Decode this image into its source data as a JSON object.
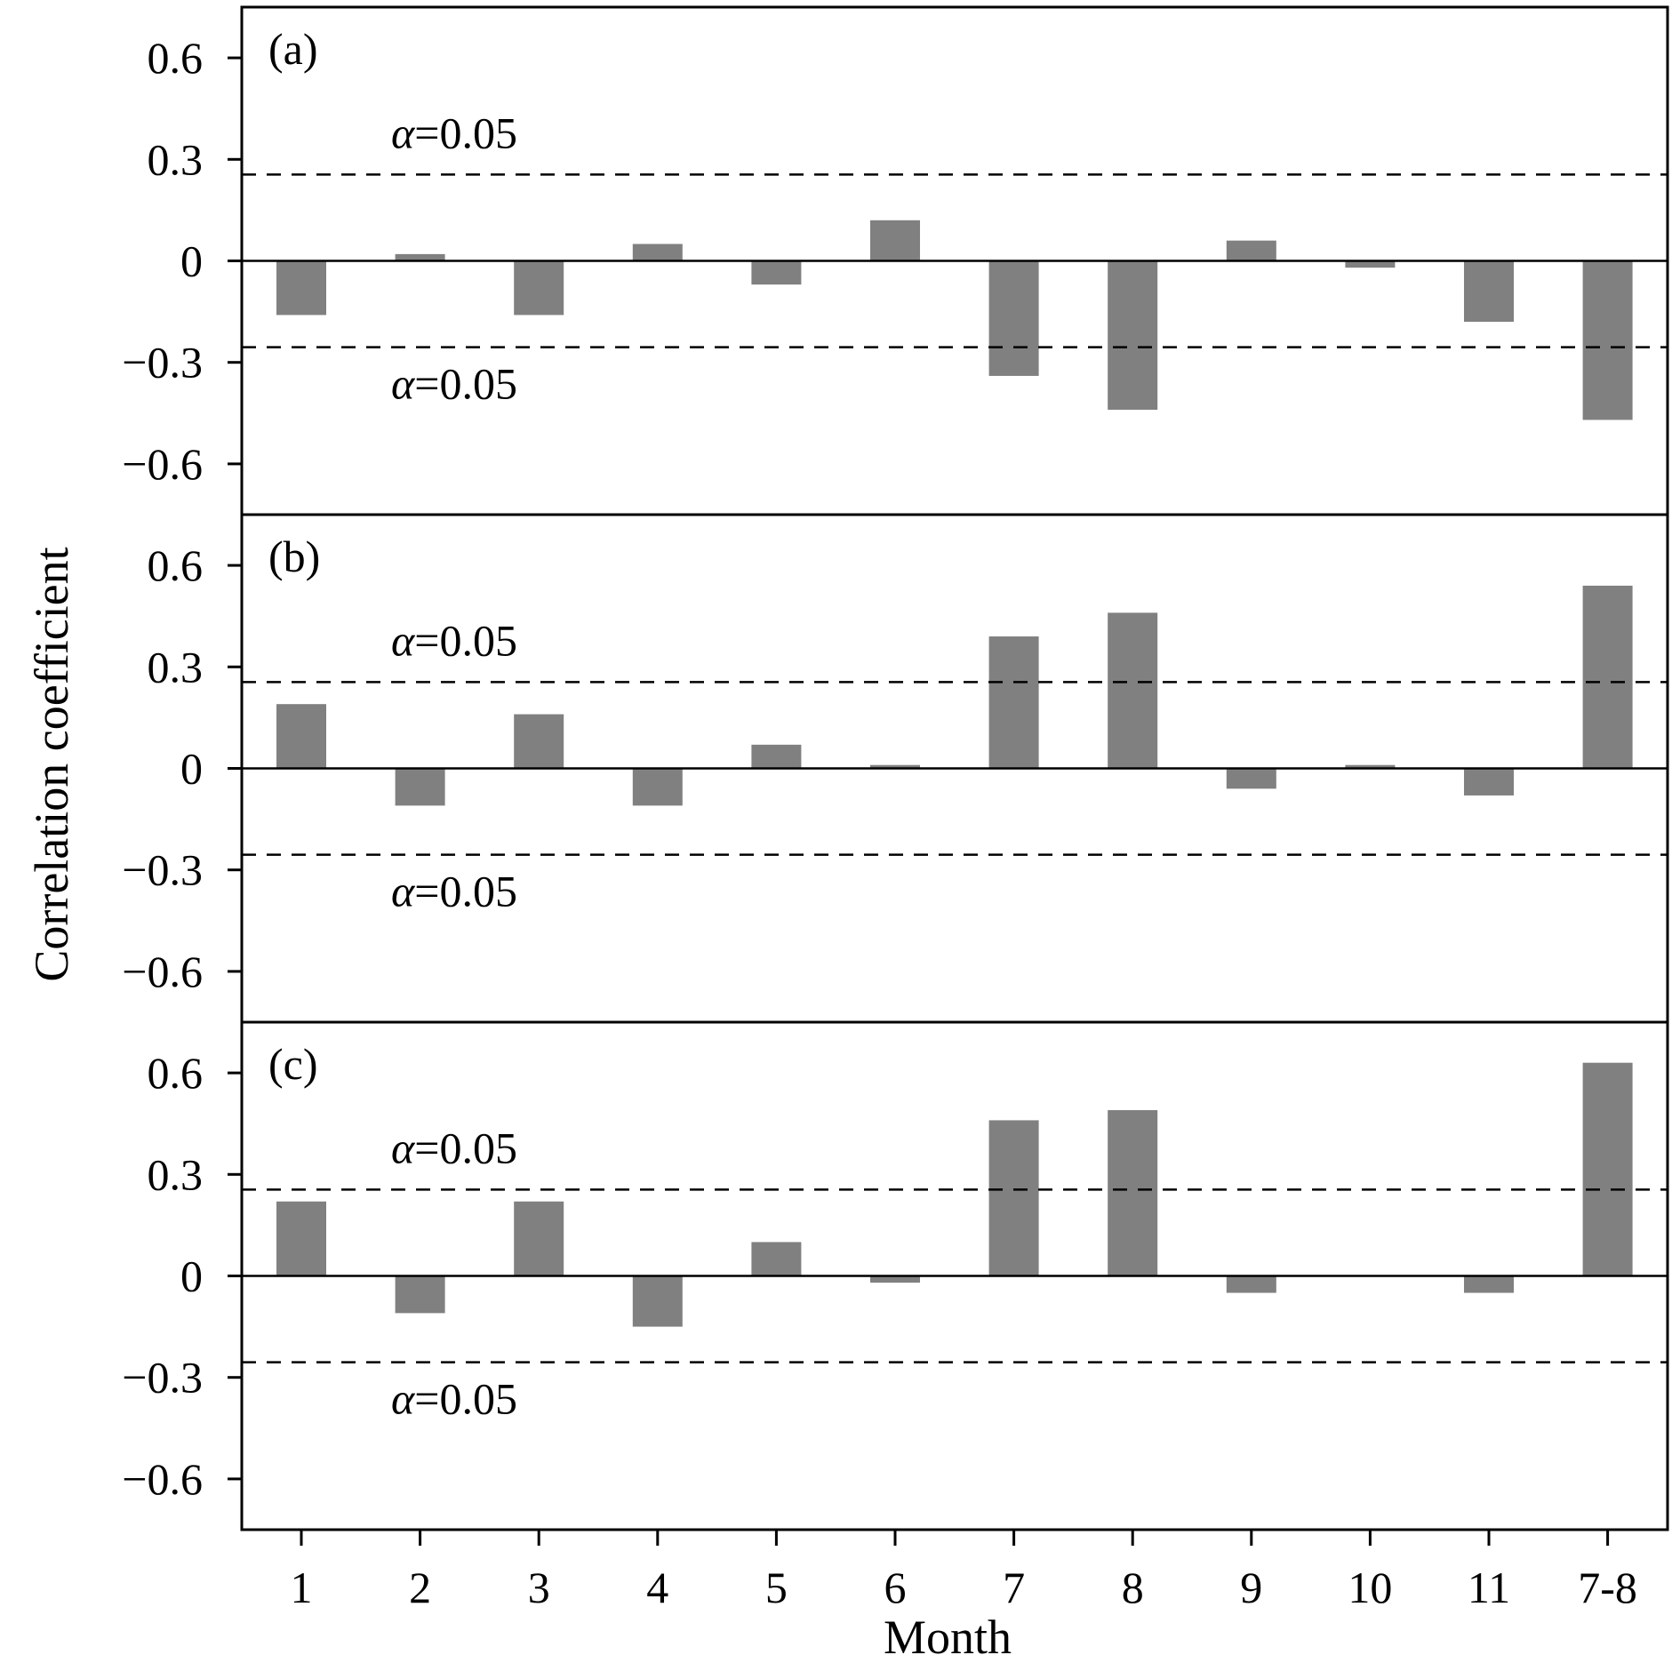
{
  "chart_data": {
    "type": "bar",
    "xlabel": "Month",
    "ylabel": "Correlation coefficient",
    "categories": [
      "1",
      "2",
      "3",
      "4",
      "5",
      "6",
      "7",
      "8",
      "9",
      "10",
      "11",
      "7-8"
    ],
    "ylim": [
      -0.75,
      0.75
    ],
    "yticks": [
      0.6,
      0.3,
      0,
      -0.3,
      -0.6
    ],
    "ytick_labels": [
      "0.6",
      "0.3",
      "0",
      "−0.3",
      "−0.6"
    ],
    "bar_color": "#808080",
    "significance": {
      "label_symbol": "α",
      "label_value": "=0.05",
      "upper": 0.255,
      "lower": -0.255
    },
    "panels": [
      {
        "label": "(a)",
        "values": [
          -0.16,
          0.02,
          -0.16,
          0.05,
          -0.07,
          0.12,
          -0.34,
          -0.44,
          0.06,
          -0.02,
          -0.18,
          -0.47
        ]
      },
      {
        "label": "(b)",
        "values": [
          0.19,
          -0.11,
          0.16,
          -0.11,
          0.07,
          0.01,
          0.39,
          0.46,
          -0.06,
          0.01,
          -0.08,
          0.54
        ]
      },
      {
        "label": "(c)",
        "values": [
          0.22,
          -0.11,
          0.22,
          -0.15,
          0.1,
          -0.02,
          0.46,
          0.49,
          -0.05,
          0.0,
          -0.05,
          0.63
        ]
      }
    ]
  }
}
